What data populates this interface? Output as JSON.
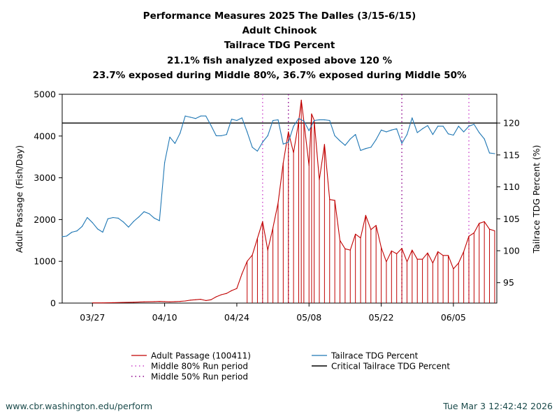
{
  "titles": [
    "Performance Measures 2025 The Dalles (3/15-6/15)",
    "Adult Chinook",
    "Tailrace TDG Percent",
    "21.1% fish analyzed exposed above 120 %",
    "23.7% exposed during Middle 80%, 36.7% exposed during Middle 50%"
  ],
  "footer": {
    "left": "www.cbr.washington.edu/perform",
    "right": "Tue Mar  3 12:42:42 2026"
  },
  "chart_data": {
    "type": "line",
    "x_start": "3/21",
    "x_end": "6/16",
    "x_ticks": [
      {
        "label": "03/27",
        "day": 6
      },
      {
        "label": "04/10",
        "day": 20
      },
      {
        "label": "04/24",
        "day": 34
      },
      {
        "label": "05/08",
        "day": 48
      },
      {
        "label": "05/22",
        "day": 62
      },
      {
        "label": "06/05",
        "day": 76
      }
    ],
    "ylabel_left": "Adult Passage (Fish/Day)",
    "ylabel_right": "Tailrace TDG Percent (%)",
    "ylim_left": [
      0,
      5000
    ],
    "ylim_right": [
      91.8,
      124.5
    ],
    "yticks_left": [
      0,
      1000,
      2000,
      3000,
      4000,
      5000
    ],
    "yticks_right": [
      95,
      100,
      105,
      110,
      115,
      120
    ],
    "critical_tdg": 120,
    "middle80_days": [
      39,
      79
    ],
    "middle50_days": [
      44,
      66
    ],
    "series": [
      {
        "name": "Adult Passage (100411)",
        "axis": "left",
        "color": "#c00000",
        "x_days": [
          6,
          8,
          10,
          12,
          14,
          16,
          18,
          19,
          20,
          21,
          22,
          23,
          24,
          25,
          26,
          27,
          28,
          29,
          30,
          31,
          32,
          33,
          34,
          35,
          36,
          37,
          38,
          39,
          40,
          41,
          42,
          43,
          44,
          45,
          46,
          46.5,
          47,
          48,
          48.5,
          49,
          50,
          51,
          52,
          53,
          54,
          55,
          56,
          57,
          58,
          59,
          60,
          61,
          62,
          63,
          64,
          65,
          66,
          67,
          68,
          69,
          70,
          71,
          72,
          73,
          74,
          75,
          76,
          77,
          78,
          79,
          80,
          81,
          82,
          83,
          84
        ],
        "values": [
          5,
          5,
          10,
          15,
          20,
          30,
          35,
          40,
          35,
          30,
          35,
          40,
          50,
          70,
          80,
          90,
          60,
          80,
          150,
          200,
          230,
          300,
          350,
          700,
          1000,
          1150,
          1550,
          1950,
          1270,
          1800,
          2400,
          3350,
          4100,
          3600,
          4350,
          4860,
          4350,
          3300,
          4530,
          4380,
          2950,
          3800,
          2480,
          2460,
          1500,
          1300,
          1270,
          1650,
          1560,
          2100,
          1760,
          1860,
          1330,
          990,
          1250,
          1180,
          1310,
          990,
          1270,
          1050,
          1050,
          1200,
          960,
          1230,
          1140,
          1140,
          820,
          960,
          1230,
          1600,
          1680,
          1910,
          1950,
          1770,
          1730
        ]
      },
      {
        "name": "Tailrace TDG Percent",
        "axis": "right",
        "color": "#1f77b4",
        "x_days": [
          0,
          1,
          2,
          3,
          4,
          5,
          6,
          7,
          8,
          9,
          10,
          11,
          12,
          13,
          14,
          15,
          16,
          17,
          18,
          19,
          20,
          21,
          22,
          23,
          24,
          25,
          26,
          27,
          28,
          29,
          30,
          31,
          32,
          33,
          34,
          35,
          36,
          37,
          38,
          39,
          40,
          41,
          42,
          43,
          44,
          45,
          46,
          47,
          48,
          49,
          50,
          51,
          52,
          53,
          54,
          55,
          56,
          57,
          58,
          59,
          60,
          61,
          62,
          63,
          64,
          65,
          66,
          67,
          68,
          69,
          70,
          71,
          72,
          73,
          74,
          75,
          76,
          77,
          78,
          79,
          80,
          81,
          82,
          83,
          84
        ],
        "values": [
          102.2,
          102.3,
          102.9,
          103.1,
          103.8,
          105.2,
          104.4,
          103.4,
          102.9,
          105,
          105.2,
          105.1,
          104.5,
          103.7,
          104.6,
          105.3,
          106.1,
          105.8,
          105.1,
          104.7,
          113.8,
          117.8,
          116.8,
          118.4,
          121.1,
          120.9,
          120.7,
          121.1,
          121.1,
          119.6,
          118,
          118,
          118.2,
          120.6,
          120.4,
          120.8,
          118.6,
          116.2,
          115.6,
          117,
          118,
          120.4,
          120.5,
          116.7,
          117,
          119.5,
          120.7,
          120.3,
          118.8,
          120.4,
          120.5,
          120.5,
          120.4,
          118,
          117.2,
          116.5,
          117.5,
          118.2,
          115.7,
          116,
          116.2,
          117.4,
          118.9,
          118.6,
          118.9,
          119.1,
          116.8,
          118.2,
          120.8,
          118.5,
          119.1,
          119.6,
          118.2,
          119.5,
          119.5,
          118.3,
          118.1,
          119.5,
          118.6,
          119.5,
          119.8,
          118.5,
          117.5,
          115.3,
          115.2
        ]
      }
    ],
    "legend": [
      {
        "label": "Adult Passage (100411)",
        "style": "line",
        "color": "#c00000"
      },
      {
        "label": "Middle 80% Run period",
        "style": "dotted",
        "color": "#cc44cc"
      },
      {
        "label": "Middle 50% Run period",
        "style": "dotted",
        "color": "#8b008b"
      },
      {
        "label": "Tailrace TDG Percent",
        "style": "line",
        "color": "#1f77b4"
      },
      {
        "label": "Critical Tailrace TDG Percent",
        "style": "line",
        "color": "#000000"
      }
    ],
    "legend_placement": "bottom"
  }
}
